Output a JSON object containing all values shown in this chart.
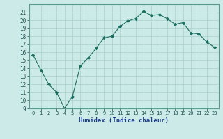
{
  "x": [
    0,
    1,
    2,
    3,
    4,
    5,
    6,
    7,
    8,
    9,
    10,
    11,
    12,
    13,
    14,
    15,
    16,
    17,
    18,
    19,
    20,
    21,
    22,
    23
  ],
  "y": [
    15.7,
    13.8,
    12.0,
    11.0,
    9.0,
    10.5,
    14.3,
    15.3,
    16.5,
    17.8,
    18.0,
    19.2,
    19.9,
    20.2,
    21.1,
    20.6,
    20.7,
    20.2,
    19.5,
    19.7,
    18.4,
    18.3,
    17.3,
    16.6
  ],
  "line_color": "#1a6e60",
  "marker": "D",
  "marker_size": 2.2,
  "bg_color": "#cceae7",
  "grid_color": "#b0d4d0",
  "xlabel": "Humidex (Indice chaleur)",
  "ylim": [
    9,
    22
  ],
  "xlim": [
    -0.5,
    23.5
  ],
  "yticks": [
    9,
    10,
    11,
    12,
    13,
    14,
    15,
    16,
    17,
    18,
    19,
    20,
    21
  ],
  "xticks": [
    0,
    1,
    2,
    3,
    4,
    5,
    6,
    7,
    8,
    9,
    10,
    11,
    12,
    13,
    14,
    15,
    16,
    17,
    18,
    19,
    20,
    21,
    22,
    23
  ],
  "xtick_labels": [
    "0",
    "1",
    "2",
    "3",
    "4",
    "5",
    "6",
    "7",
    "8",
    "9",
    "10",
    "11",
    "12",
    "13",
    "14",
    "15",
    "16",
    "17",
    "18",
    "19",
    "20",
    "21",
    "22",
    "23"
  ]
}
